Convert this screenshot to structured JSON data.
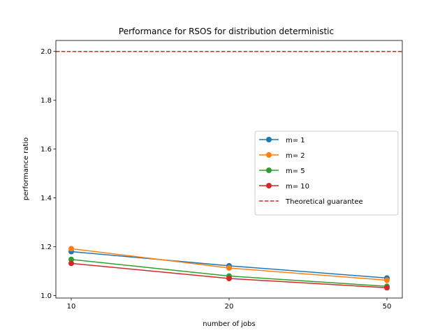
{
  "chart_data": {
    "type": "line",
    "title": "Performance for RSOS for distribution deterministic",
    "xlabel": "number of jobs",
    "ylabel": "performance ratio",
    "categories": [
      "10",
      "20",
      "50"
    ],
    "ylim": [
      0.99,
      2.045
    ],
    "yticks": [
      "1.0",
      "1.2",
      "1.4",
      "1.6",
      "1.8",
      "2.0"
    ],
    "grid": false,
    "legend_position": "center-right",
    "series": [
      {
        "name": "m= 1",
        "color": "#1f77b4",
        "values": [
          1.18,
          1.122,
          1.072
        ]
      },
      {
        "name": "m= 2",
        "color": "#ff7f0e",
        "values": [
          1.192,
          1.113,
          1.063
        ]
      },
      {
        "name": "m= 5",
        "color": "#2ca02c",
        "values": [
          1.148,
          1.08,
          1.038
        ]
      },
      {
        "name": "m= 10",
        "color": "#d62728",
        "values": [
          1.132,
          1.07,
          1.032
        ]
      }
    ],
    "reference_line": {
      "name": "Theoretical guarantee",
      "value": 2.0,
      "color": "#d62728",
      "style": "dashed"
    }
  }
}
